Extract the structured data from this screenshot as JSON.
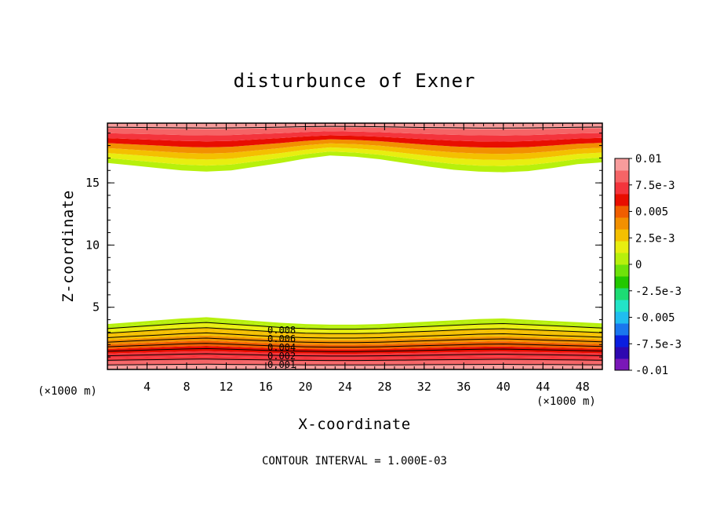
{
  "chart_data": {
    "type": "contour",
    "title": "disturbunce of Exner",
    "xlabel": "X-coordinate",
    "ylabel": "Z-coordinate",
    "x_unit_label": "(×1000 m)",
    "x_unit_label_right": "(×1000 m)",
    "xlim": [
      0,
      50
    ],
    "ylim": [
      0,
      19.8
    ],
    "x_ticks": [
      4,
      8,
      12,
      16,
      20,
      24,
      28,
      32,
      36,
      40,
      44,
      48
    ],
    "y_ticks": [
      5,
      10,
      15
    ],
    "x_tick_labels": [
      "4",
      "8",
      "12",
      "16",
      "20",
      "24",
      "28",
      "32",
      "36",
      "40",
      "44",
      "48"
    ],
    "y_tick_labels": [
      "5",
      "10",
      "15"
    ],
    "contour_interval_text": "CONTOUR INTERVAL = 1.000E-03",
    "contour_labels": [
      "0.008",
      "0.006",
      "0.004",
      "0.002",
      "0.001"
    ],
    "colorbar": {
      "range": [
        -0.01,
        0.01
      ],
      "tick_labels": [
        "0.01",
        "7.5e-3",
        "0.005",
        "2.5e-3",
        "0",
        "-2.5e-3",
        "-0.005",
        "-7.5e-3",
        "-0.01"
      ],
      "colors": [
        "#7a17b8",
        "#2e08b0",
        "#0a1ee0",
        "#1a76ee",
        "#20bdf0",
        "#22e4c8",
        "#1ddc74",
        "#22c800",
        "#6ee20a",
        "#b7f00c",
        "#e8ee10",
        "#f4c000",
        "#f29000",
        "#f05e00",
        "#e80e00",
        "#f4343c",
        "#f56466",
        "#f89c9c"
      ]
    },
    "bottom_band": {
      "top_z_km": [
        3.65,
        3.8,
        3.95,
        4.1,
        4.2,
        4.05,
        3.9,
        3.75,
        3.65,
        3.6,
        3.6,
        3.65,
        3.75,
        3.85,
        3.95,
        4.05,
        4.1,
        4.0,
        3.9,
        3.8,
        3.7
      ],
      "contour_levels": [
        0.001,
        0.002,
        0.003,
        0.004,
        0.005,
        0.006,
        0.007,
        0.008,
        0.009
      ]
    },
    "top_band": {
      "bottom_z_km": [
        16.6,
        16.4,
        16.2,
        16.0,
        15.9,
        16.0,
        16.3,
        16.6,
        16.95,
        17.2,
        17.1,
        16.9,
        16.6,
        16.3,
        16.05,
        15.9,
        15.85,
        15.95,
        16.2,
        16.5,
        16.65
      ],
      "contour_levels": [
        0.01,
        0.009
      ]
    }
  }
}
